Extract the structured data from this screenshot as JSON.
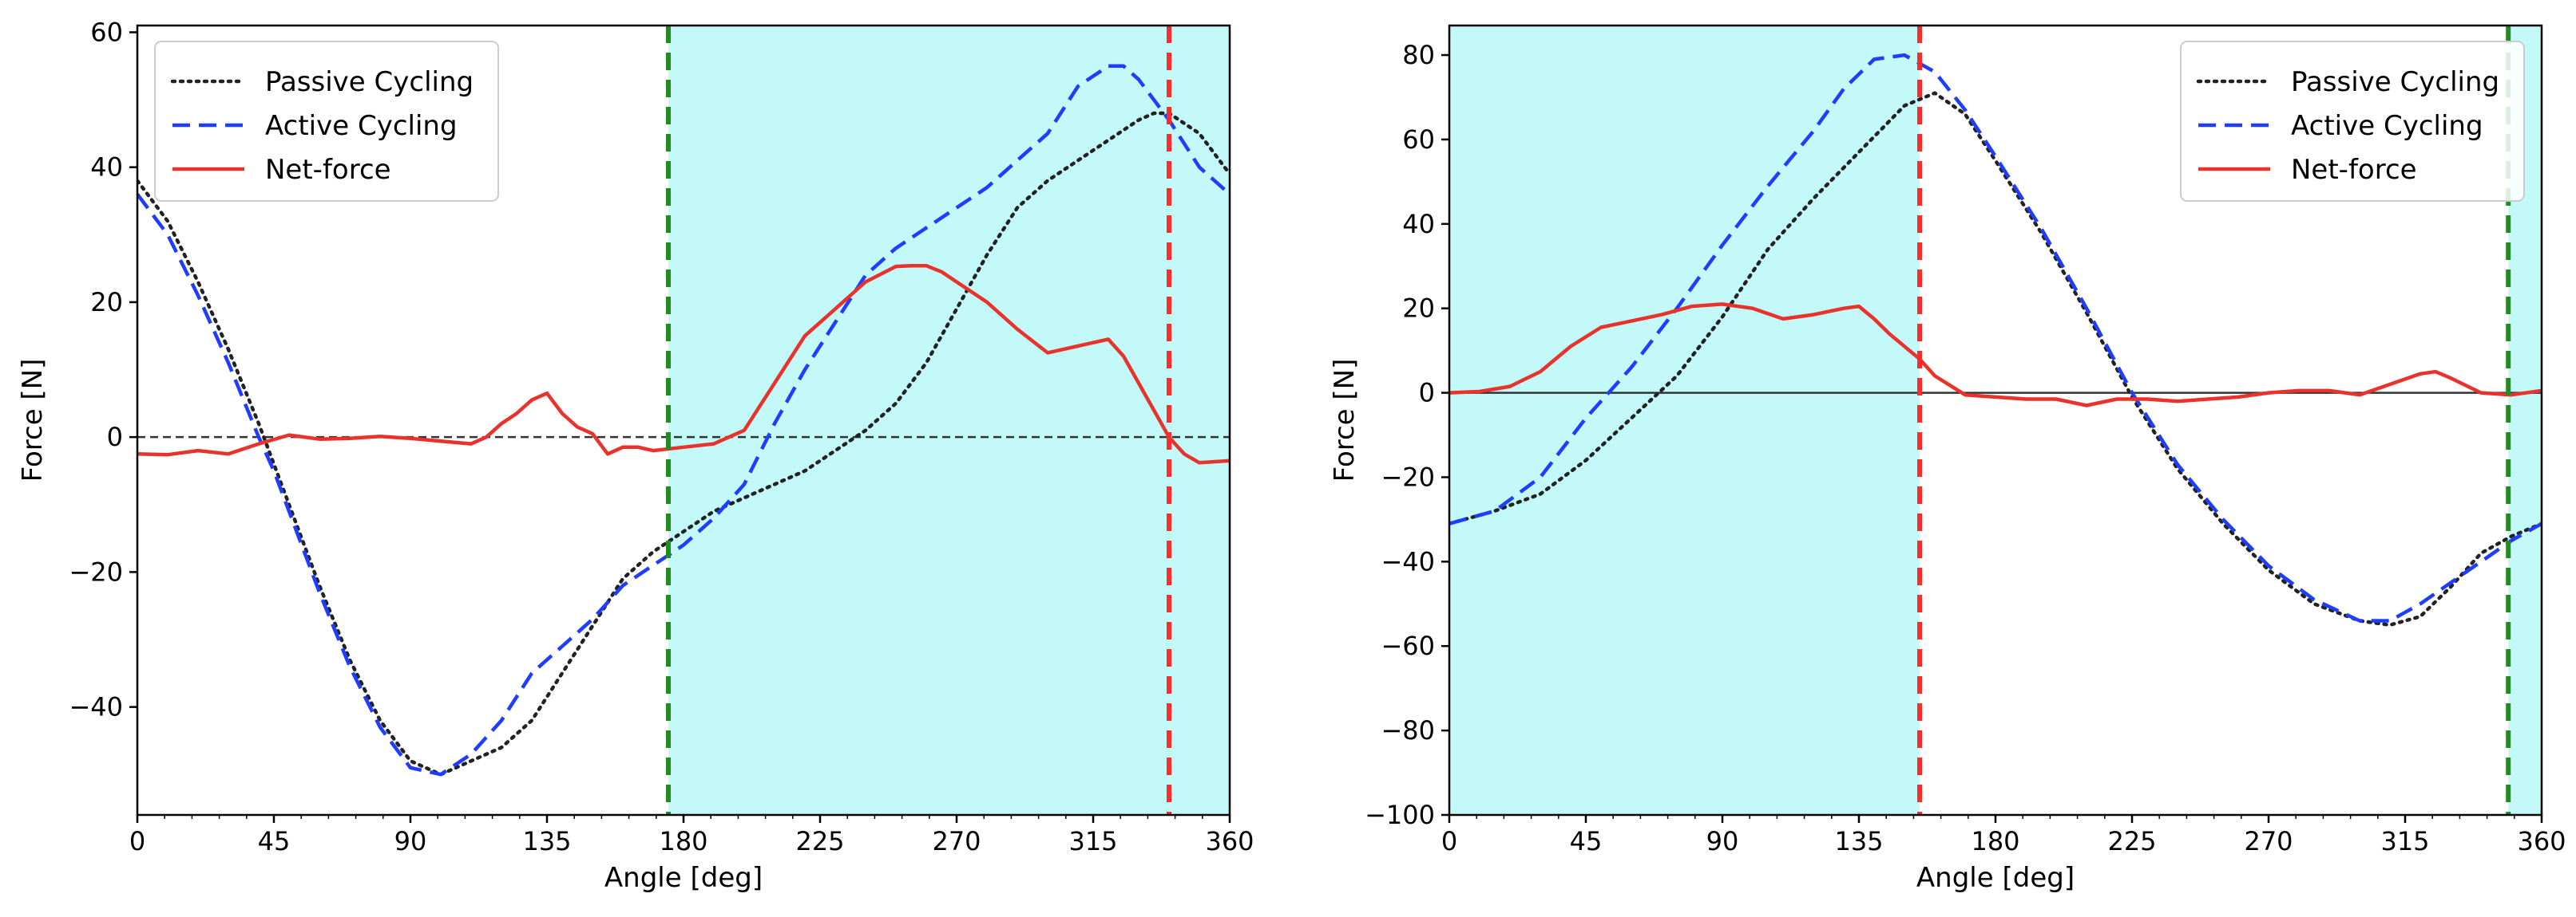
{
  "chart_data": [
    {
      "type": "line",
      "xlabel": "Angle [deg]",
      "ylabel": "Force [N]",
      "xlim": [
        0,
        360
      ],
      "ylim": [
        -56,
        61
      ],
      "xticks": [
        0,
        45,
        90,
        135,
        180,
        225,
        270,
        315,
        360
      ],
      "yticks": [
        -40,
        -20,
        0,
        20,
        40,
        60
      ],
      "xtick_labels": [
        "0",
        "45",
        "90",
        "135",
        "180",
        "225",
        "270",
        "315",
        "360"
      ],
      "ytick_labels": [
        "−40",
        "−20",
        "0",
        "20",
        "40",
        "60"
      ],
      "grid": false,
      "legend_position": "top-left",
      "shaded_span": {
        "from": 175,
        "to": 360,
        "color": "#c4f9fa"
      },
      "vertical_lines": [
        {
          "x": 175,
          "color": "#228b22",
          "style": "dashed"
        },
        {
          "x": 340,
          "color": "#ff2a2a",
          "style": "dashed"
        }
      ],
      "horizontal_lines": [
        {
          "y": 0,
          "color": "#333333",
          "style": "dashed"
        }
      ],
      "series": [
        {
          "name": "Passive Cycling",
          "color": "#222222",
          "style": "dotted",
          "x": [
            0,
            10,
            20,
            30,
            40,
            45,
            50,
            60,
            70,
            80,
            90,
            100,
            110,
            120,
            130,
            140,
            150,
            160,
            170,
            180,
            190,
            200,
            210,
            220,
            230,
            240,
            250,
            260,
            270,
            280,
            290,
            300,
            310,
            320,
            330,
            335,
            340,
            350,
            360
          ],
          "y": [
            38,
            32,
            23,
            13,
            2,
            -4,
            -10,
            -22,
            -33,
            -42,
            -48,
            -50,
            -48,
            -46,
            -42,
            -35,
            -28,
            -21,
            -17,
            -14,
            -11,
            -9,
            -7,
            -5,
            -2,
            1,
            5,
            11,
            19,
            27,
            34,
            38,
            41,
            44,
            47,
            48,
            48,
            45,
            39
          ]
        },
        {
          "name": "Active Cycling",
          "color": "#1f3dff",
          "style": "dashed",
          "x": [
            0,
            10,
            20,
            30,
            40,
            45,
            50,
            60,
            70,
            80,
            90,
            100,
            110,
            120,
            130,
            140,
            150,
            160,
            170,
            180,
            190,
            200,
            210,
            220,
            230,
            240,
            250,
            260,
            270,
            280,
            290,
            300,
            310,
            320,
            325,
            330,
            340,
            350,
            360
          ],
          "y": [
            36,
            30,
            21,
            11,
            0,
            -5,
            -11,
            -23,
            -34,
            -43,
            -49,
            -50,
            -47,
            -42,
            -35,
            -31,
            -27,
            -22,
            -19,
            -16,
            -12,
            -7,
            2,
            10,
            17,
            24,
            28,
            31,
            34,
            37,
            41,
            45,
            52,
            55,
            55,
            53,
            47,
            40,
            36
          ]
        },
        {
          "name": "Net-force",
          "color": "#e8332d",
          "style": "solid",
          "x": [
            0,
            10,
            20,
            30,
            40,
            50,
            60,
            70,
            80,
            90,
            100,
            110,
            115,
            120,
            125,
            130,
            135,
            140,
            145,
            150,
            155,
            160,
            165,
            170,
            180,
            190,
            200,
            210,
            220,
            230,
            240,
            250,
            255,
            260,
            265,
            270,
            280,
            290,
            300,
            310,
            315,
            320,
            325,
            330,
            335,
            340,
            345,
            350,
            360
          ],
          "y": [
            -2.5,
            -2.6,
            -2,
            -2.5,
            -1,
            0.3,
            -0.3,
            -0.2,
            0.1,
            -0.2,
            -0.6,
            -1,
            0,
            2,
            3.5,
            5.5,
            6.5,
            3.5,
            1.5,
            0.5,
            -2.5,
            -1.5,
            -1.5,
            -2,
            -1.5,
            -1,
            1,
            8,
            15,
            19,
            23,
            25.3,
            25.4,
            25.4,
            24.5,
            23,
            20,
            16,
            12.5,
            13.5,
            14,
            14.5,
            12,
            8,
            4,
            0,
            -2.5,
            -3.8,
            -3.5
          ]
        }
      ]
    },
    {
      "type": "line",
      "xlabel": "Angle [deg]",
      "ylabel": "Force [N]",
      "xlim": [
        0,
        360
      ],
      "ylim": [
        -100,
        87
      ],
      "xticks": [
        0,
        45,
        90,
        135,
        180,
        225,
        270,
        315,
        360
      ],
      "yticks": [
        -100,
        -80,
        -60,
        -40,
        -20,
        0,
        20,
        40,
        60,
        80
      ],
      "xtick_labels": [
        "0",
        "45",
        "90",
        "135",
        "180",
        "225",
        "270",
        "315",
        "360"
      ],
      "ytick_labels": [
        "−100",
        "−80",
        "−60",
        "−40",
        "−20",
        "0",
        "20",
        "40",
        "60",
        "80"
      ],
      "grid": false,
      "legend_position": "top-right",
      "shaded_spans": [
        {
          "from": 0,
          "to": 155,
          "color": "#c4f9fa"
        },
        {
          "from": 349,
          "to": 360,
          "color": "#c4f9fa"
        }
      ],
      "vertical_lines": [
        {
          "x": 155,
          "color": "#ff2a2a",
          "style": "dashed"
        },
        {
          "x": 349,
          "color": "#228b22",
          "style": "dashed"
        }
      ],
      "horizontal_lines": [
        {
          "y": 0,
          "color": "#333333",
          "style": "solid"
        }
      ],
      "series": [
        {
          "name": "Passive Cycling",
          "color": "#222222",
          "style": "dotted",
          "x": [
            0,
            15,
            30,
            45,
            60,
            75,
            90,
            105,
            120,
            135,
            150,
            160,
            170,
            180,
            195,
            210,
            225,
            240,
            255,
            270,
            285,
            300,
            310,
            320,
            330,
            340,
            350,
            360
          ],
          "y": [
            -31,
            -28,
            -24,
            -16,
            -6,
            4,
            18,
            34,
            46,
            57,
            68,
            71,
            66,
            55,
            38,
            19,
            -1,
            -18,
            -31,
            -42,
            -50,
            -54,
            -55,
            -53,
            -46,
            -38,
            -34,
            -31
          ],
          "label_dash": "dotted"
        },
        {
          "name": "Active Cycling",
          "color": "#1f3dff",
          "style": "dashed",
          "x": [
            0,
            15,
            30,
            45,
            60,
            75,
            90,
            105,
            120,
            130,
            140,
            150,
            160,
            170,
            180,
            195,
            210,
            225,
            240,
            255,
            270,
            285,
            300,
            310,
            320,
            330,
            340,
            350,
            360
          ],
          "y": [
            -31,
            -28,
            -20,
            -6,
            6,
            20,
            35,
            49,
            62,
            72,
            79,
            80,
            76,
            67,
            56,
            39,
            20,
            0,
            -17,
            -30,
            -41,
            -49,
            -54,
            -54,
            -50,
            -45,
            -40,
            -35,
            -31
          ]
        },
        {
          "name": "Net-force",
          "color": "#e8332d",
          "style": "solid",
          "x": [
            0,
            10,
            20,
            30,
            40,
            50,
            60,
            70,
            80,
            90,
            100,
            110,
            120,
            130,
            135,
            140,
            145,
            150,
            155,
            160,
            170,
            180,
            190,
            200,
            210,
            220,
            230,
            240,
            250,
            260,
            270,
            280,
            290,
            300,
            310,
            320,
            325,
            330,
            340,
            350,
            360
          ],
          "y": [
            0,
            0.3,
            1.5,
            5,
            11,
            15.5,
            17,
            18.5,
            20.5,
            21,
            20,
            17.5,
            18.5,
            20,
            20.5,
            17.5,
            14,
            11,
            8,
            4,
            -0.5,
            -1,
            -1.5,
            -1.5,
            -3,
            -1.5,
            -1.5,
            -2,
            -1.5,
            -1,
            0,
            0.5,
            0.5,
            -0.5,
            2,
            4.5,
            5,
            3.5,
            0,
            -0.5,
            0.5
          ]
        }
      ]
    }
  ]
}
